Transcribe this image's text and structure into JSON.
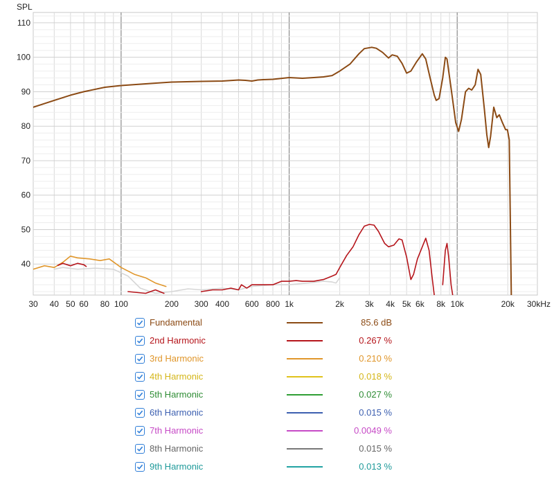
{
  "chart_data": {
    "type": "line",
    "ylabel": "SPL",
    "xscale": "log",
    "xlim": [
      30,
      30000
    ],
    "ylim": [
      31,
      113
    ],
    "x_ticks": [
      {
        "v": 30,
        "label": "30"
      },
      {
        "v": 40,
        "label": "40"
      },
      {
        "v": 50,
        "label": "50"
      },
      {
        "v": 60,
        "label": "60"
      },
      {
        "v": 80,
        "label": "80"
      },
      {
        "v": 100,
        "label": "100"
      },
      {
        "v": 200,
        "label": "200"
      },
      {
        "v": 300,
        "label": "300"
      },
      {
        "v": 400,
        "label": "400"
      },
      {
        "v": 600,
        "label": "600"
      },
      {
        "v": 800,
        "label": "800"
      },
      {
        "v": 1000,
        "label": "1k"
      },
      {
        "v": 2000,
        "label": "2k"
      },
      {
        "v": 3000,
        "label": "3k"
      },
      {
        "v": 4000,
        "label": "4k"
      },
      {
        "v": 5000,
        "label": "5k"
      },
      {
        "v": 6000,
        "label": "6k"
      },
      {
        "v": 8000,
        "label": "8k"
      },
      {
        "v": 10000,
        "label": "10k"
      },
      {
        "v": 20000,
        "label": "20k"
      },
      {
        "v": 30000,
        "label": "30kHz"
      }
    ],
    "y_ticks": [
      40,
      50,
      60,
      70,
      80,
      90,
      100,
      110
    ],
    "series": [
      {
        "name": "Fundamental",
        "color": "#8b4a14",
        "value_label": "85.6 dB",
        "points": [
          [
            30,
            85.5
          ],
          [
            40,
            87.5
          ],
          [
            50,
            89
          ],
          [
            60,
            90
          ],
          [
            80,
            91.3
          ],
          [
            100,
            91.8
          ],
          [
            150,
            92.4
          ],
          [
            200,
            92.8
          ],
          [
            300,
            93
          ],
          [
            400,
            93.1
          ],
          [
            500,
            93.4
          ],
          [
            550,
            93.3
          ],
          [
            600,
            93.1
          ],
          [
            650,
            93.4
          ],
          [
            700,
            93.5
          ],
          [
            800,
            93.6
          ],
          [
            1000,
            94.1
          ],
          [
            1200,
            93.9
          ],
          [
            1400,
            94.1
          ],
          [
            1600,
            94.3
          ],
          [
            1800,
            94.7
          ],
          [
            2000,
            96
          ],
          [
            2300,
            98
          ],
          [
            2600,
            101
          ],
          [
            2800,
            102.5
          ],
          [
            3100,
            102.9
          ],
          [
            3300,
            102.6
          ],
          [
            3600,
            101.4
          ],
          [
            3900,
            99.8
          ],
          [
            4100,
            100.7
          ],
          [
            4400,
            100.3
          ],
          [
            4700,
            98.2
          ],
          [
            5000,
            95.4
          ],
          [
            5300,
            96
          ],
          [
            5700,
            98.5
          ],
          [
            6200,
            101
          ],
          [
            6500,
            99.5
          ],
          [
            6900,
            94
          ],
          [
            7300,
            89
          ],
          [
            7500,
            87.5
          ],
          [
            7800,
            88
          ],
          [
            8200,
            94
          ],
          [
            8500,
            100
          ],
          [
            8700,
            99.5
          ],
          [
            9200,
            91
          ],
          [
            9800,
            81
          ],
          [
            10200,
            78.5
          ],
          [
            10600,
            82
          ],
          [
            11200,
            90
          ],
          [
            11700,
            91
          ],
          [
            12200,
            90.5
          ],
          [
            12800,
            92
          ],
          [
            13300,
            96.5
          ],
          [
            13800,
            95
          ],
          [
            14500,
            85
          ],
          [
            15000,
            77.5
          ],
          [
            15400,
            73.8
          ],
          [
            15800,
            77
          ],
          [
            16500,
            85.5
          ],
          [
            17200,
            82.5
          ],
          [
            17800,
            83.3
          ],
          [
            18600,
            81
          ],
          [
            19400,
            79
          ],
          [
            19900,
            79
          ],
          [
            20400,
            76
          ],
          [
            21000,
            30
          ]
        ]
      },
      {
        "name": "2nd Harmonic",
        "color": "#b5141a",
        "value_label": "0.267 %",
        "points": [
          [
            42,
            39.6
          ],
          [
            45,
            40.2
          ],
          [
            50,
            39.5
          ],
          [
            55,
            40.2
          ],
          [
            60,
            39.8
          ],
          [
            62,
            39.3
          ],
          [
            null,
            null
          ],
          [
            110,
            32
          ],
          [
            140,
            31.5
          ],
          [
            160,
            32.5
          ],
          [
            180,
            31.5
          ],
          [
            null,
            null
          ],
          [
            300,
            32
          ],
          [
            350,
            32.5
          ],
          [
            400,
            32.5
          ],
          [
            450,
            33
          ],
          [
            500,
            32.5
          ],
          [
            520,
            34
          ],
          [
            560,
            33
          ],
          [
            600,
            34
          ],
          [
            700,
            34
          ],
          [
            800,
            34
          ],
          [
            900,
            35
          ],
          [
            1000,
            35
          ],
          [
            1100,
            35.2
          ],
          [
            1200,
            35
          ],
          [
            1300,
            35
          ],
          [
            1400,
            35
          ],
          [
            1600,
            35.5
          ],
          [
            1800,
            36.5
          ],
          [
            1900,
            37
          ],
          [
            2000,
            39
          ],
          [
            2200,
            42.5
          ],
          [
            2400,
            45
          ],
          [
            2600,
            48.5
          ],
          [
            2800,
            51
          ],
          [
            3000,
            51.5
          ],
          [
            3200,
            51.3
          ],
          [
            3400,
            49.5
          ],
          [
            3700,
            46
          ],
          [
            3900,
            45
          ],
          [
            4200,
            45.5
          ],
          [
            4500,
            47.3
          ],
          [
            4700,
            47
          ],
          [
            5000,
            42
          ],
          [
            5300,
            35.5
          ],
          [
            5500,
            37
          ],
          [
            5800,
            41.5
          ],
          [
            6200,
            45
          ],
          [
            6500,
            47.5
          ],
          [
            6800,
            44
          ],
          [
            7100,
            36
          ],
          [
            7300,
            31
          ],
          [
            null,
            null
          ],
          [
            8200,
            34
          ],
          [
            8500,
            44
          ],
          [
            8700,
            46
          ],
          [
            8900,
            42
          ],
          [
            9200,
            34
          ],
          [
            9400,
            31
          ]
        ]
      },
      {
        "name": "3rd Harmonic",
        "color": "#e0962a",
        "value_label": "0.210 %",
        "points": [
          [
            30,
            38.5
          ],
          [
            35,
            39.5
          ],
          [
            40,
            39
          ],
          [
            45,
            40.5
          ],
          [
            50,
            42.3
          ],
          [
            55,
            41.8
          ],
          [
            65,
            41.5
          ],
          [
            75,
            41
          ],
          [
            85,
            41.5
          ],
          [
            100,
            39
          ],
          [
            120,
            37
          ],
          [
            140,
            36
          ],
          [
            160,
            34.5
          ],
          [
            185,
            33.5
          ]
        ]
      },
      {
        "name": "4th Harmonic",
        "color": "#e0c21a",
        "value_label": "0.018 %",
        "points": []
      },
      {
        "name": "5th Harmonic",
        "color": "#2e9e34",
        "value_label": "0.027 %",
        "points": []
      },
      {
        "name": "6th Harmonic",
        "color": "#3c5fb0",
        "value_label": "0.015 %",
        "points": []
      },
      {
        "name": "7th Harmonic",
        "color": "#c64ac6",
        "value_label": "0.0049 %",
        "points": []
      },
      {
        "name": "8th Harmonic",
        "color": "#777777",
        "value_label": "0.015 %",
        "points": [
          [
            40,
            38.5
          ],
          [
            45,
            39
          ],
          [
            55,
            38.5
          ],
          [
            70,
            38.8
          ],
          [
            90,
            38.5
          ],
          [
            110,
            36.5
          ],
          [
            130,
            33
          ],
          [
            160,
            31.5
          ],
          [
            200,
            32
          ],
          [
            250,
            32.8
          ],
          [
            300,
            32.5
          ],
          [
            400,
            33
          ],
          [
            500,
            32.5
          ],
          [
            600,
            33.5
          ],
          [
            800,
            34
          ],
          [
            1000,
            34
          ],
          [
            1300,
            34.5
          ],
          [
            1600,
            35
          ],
          [
            1800,
            34.8
          ],
          [
            1900,
            34.5
          ],
          [
            2000,
            36
          ]
        ]
      },
      {
        "name": "9th Harmonic",
        "color": "#22a3a3",
        "value_label": "0.013 %",
        "points": []
      }
    ]
  },
  "legend": {
    "items": [
      {
        "name": "Fundamental",
        "value": "85.6 dB",
        "color": "#8b4a14",
        "text_color": "#8b4a14"
      },
      {
        "name": "2nd Harmonic",
        "value": "0.267 %",
        "color": "#b5141a",
        "text_color": "#b5141a"
      },
      {
        "name": "3rd Harmonic",
        "value": "0.210 %",
        "color": "#e0962a",
        "text_color": "#e0962a"
      },
      {
        "name": "4th Harmonic",
        "value": "0.018 %",
        "color": "#e0c21a",
        "text_color": "#d4b619"
      },
      {
        "name": "5th Harmonic",
        "value": "0.027 %",
        "color": "#2e9e34",
        "text_color": "#2e8c34"
      },
      {
        "name": "6th Harmonic",
        "value": "0.015 %",
        "color": "#3c5fb0",
        "text_color": "#3c5fb0"
      },
      {
        "name": "7th Harmonic",
        "value": "0.0049 %",
        "color": "#c64ac6",
        "text_color": "#c64ac6"
      },
      {
        "name": "8th Harmonic",
        "value": "0.015 %",
        "color": "#777777",
        "text_color": "#666666"
      },
      {
        "name": "9th Harmonic",
        "value": "0.013 %",
        "color": "#22a3a3",
        "text_color": "#1f9a9a"
      }
    ]
  }
}
